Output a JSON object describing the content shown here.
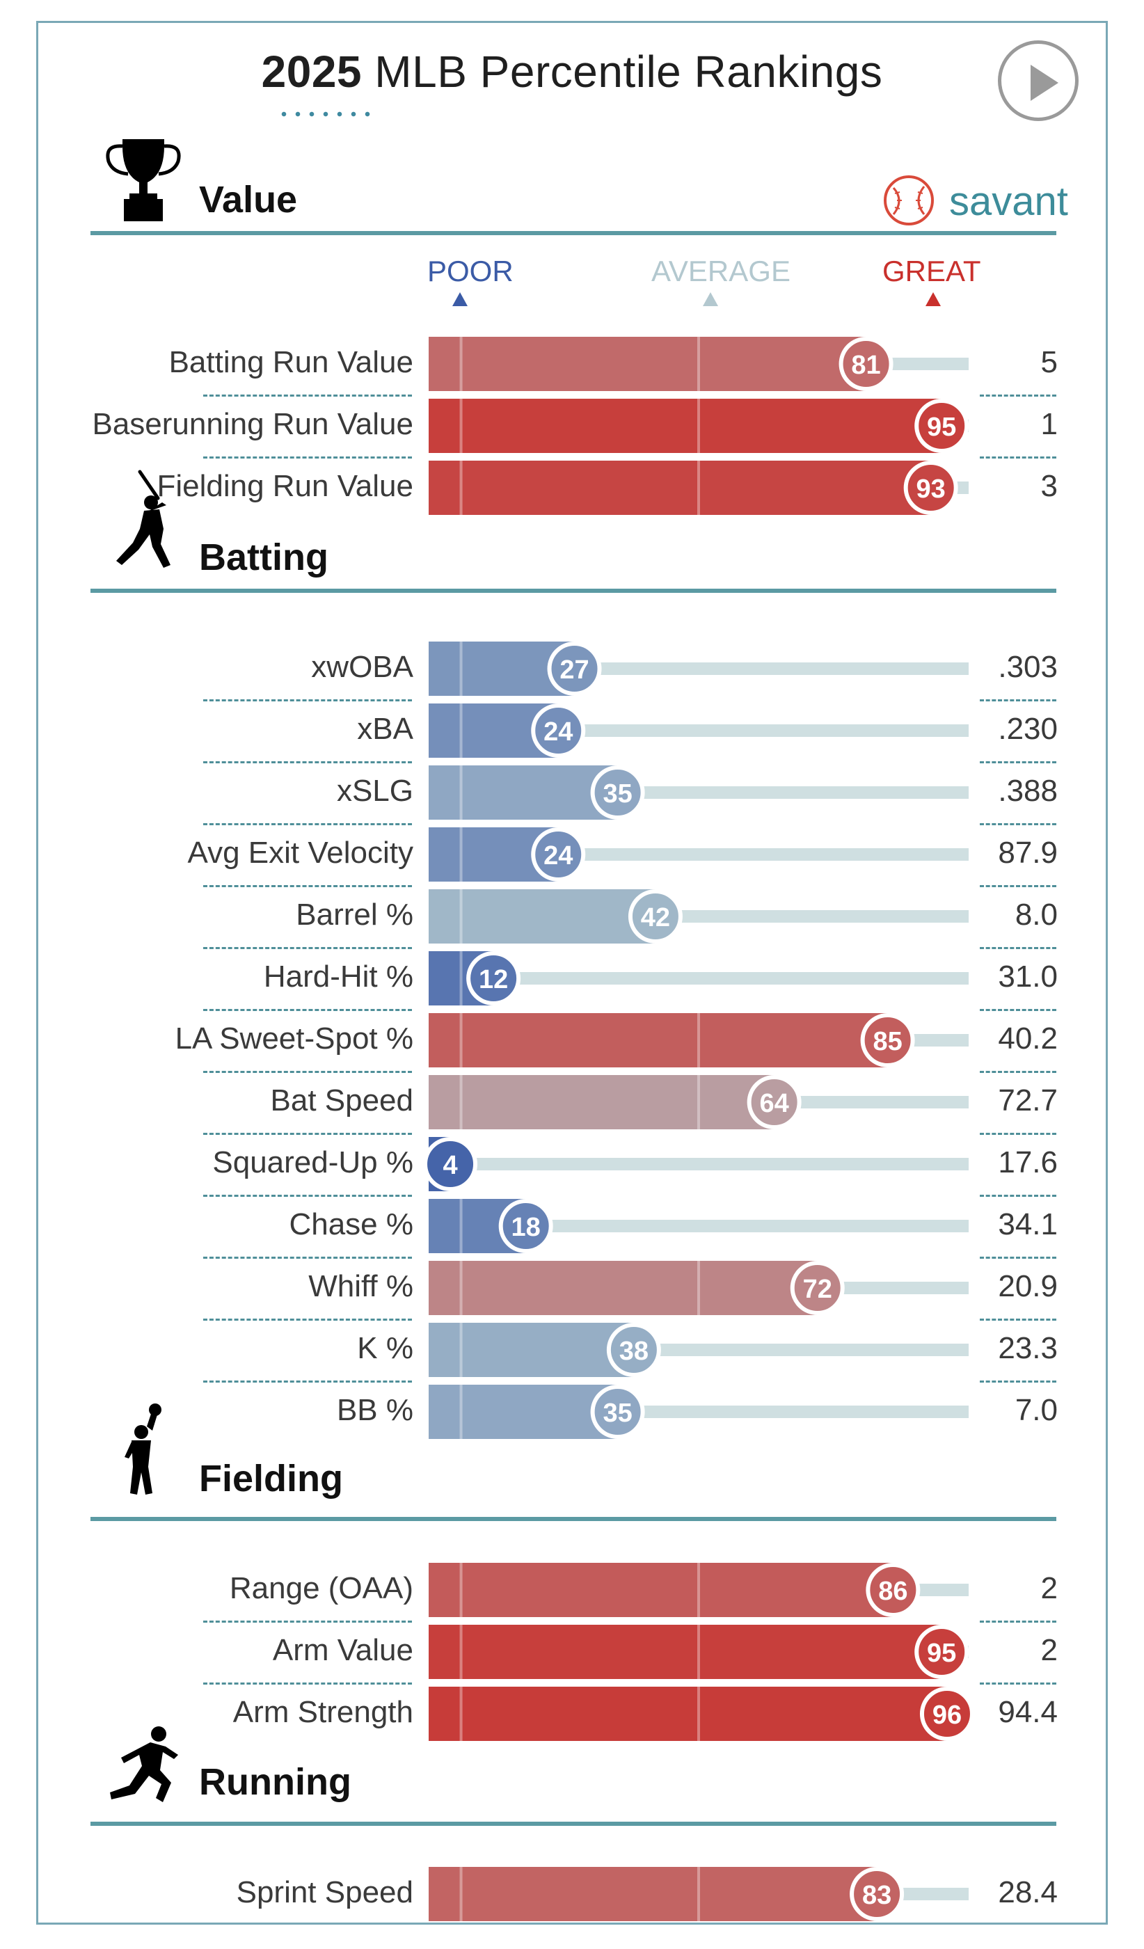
{
  "header": {
    "title_year": "2025",
    "title_rest": " MLB Percentile Rankings",
    "brand": "savant"
  },
  "colors": {
    "frame": "#7aa8b6",
    "section_rule": "#5b9aa3",
    "separator": "#4f8f99",
    "track": "#cfdfe1",
    "poor": "#3b5ba6",
    "average": "#b3c8cf",
    "great": "#c9302c",
    "brand": "#3d8c9a"
  },
  "legend": {
    "poor": "POOR",
    "average": "AVERAGE",
    "great": "GREAT"
  },
  "chart_data": {
    "type": "bar",
    "title": "2025 MLB Percentile Rankings",
    "xlim": [
      0,
      100
    ],
    "sections": [
      {
        "name": "Value",
        "icon": "trophy-icon",
        "rows": [
          {
            "label": "Batting Run Value",
            "percentile": 81,
            "value": "5"
          },
          {
            "label": "Baserunning Run Value",
            "percentile": 95,
            "value": "1"
          },
          {
            "label": "Fielding Run Value",
            "percentile": 93,
            "value": "3"
          }
        ]
      },
      {
        "name": "Batting",
        "icon": "batter-icon",
        "rows": [
          {
            "label": "xwOBA",
            "percentile": 27,
            "value": ".303"
          },
          {
            "label": "xBA",
            "percentile": 24,
            "value": ".230"
          },
          {
            "label": "xSLG",
            "percentile": 35,
            "value": ".388"
          },
          {
            "label": "Avg Exit Velocity",
            "percentile": 24,
            "value": "87.9"
          },
          {
            "label": "Barrel %",
            "percentile": 42,
            "value": "8.0"
          },
          {
            "label": "Hard-Hit %",
            "percentile": 12,
            "value": "31.0"
          },
          {
            "label": "LA Sweet-Spot %",
            "percentile": 85,
            "value": "40.2"
          },
          {
            "label": "Bat Speed",
            "percentile": 64,
            "value": "72.7"
          },
          {
            "label": "Squared-Up %",
            "percentile": 4,
            "value": "17.6"
          },
          {
            "label": "Chase %",
            "percentile": 18,
            "value": "34.1"
          },
          {
            "label": "Whiff %",
            "percentile": 72,
            "value": "20.9"
          },
          {
            "label": "K %",
            "percentile": 38,
            "value": "23.3"
          },
          {
            "label": "BB %",
            "percentile": 35,
            "value": "7.0"
          }
        ]
      },
      {
        "name": "Fielding",
        "icon": "fielder-icon",
        "rows": [
          {
            "label": "Range (OAA)",
            "percentile": 86,
            "value": "2"
          },
          {
            "label": "Arm Value",
            "percentile": 95,
            "value": "2"
          },
          {
            "label": "Arm Strength",
            "percentile": 96,
            "value": "94.4"
          }
        ]
      },
      {
        "name": "Running",
        "icon": "runner-icon",
        "rows": [
          {
            "label": "Sprint Speed",
            "percentile": 83,
            "value": "28.4"
          }
        ]
      }
    ]
  }
}
